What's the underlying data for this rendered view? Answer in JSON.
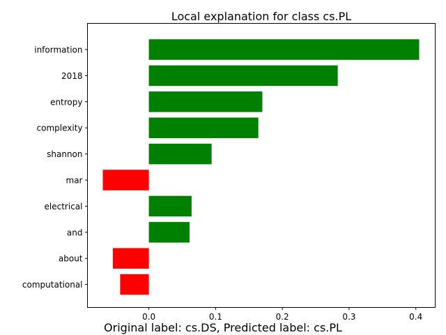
{
  "chart_data": {
    "type": "bar",
    "orientation": "horizontal",
    "title": "Local explanation for class cs.PL",
    "xlabel": "",
    "ylabel": "",
    "caption": "Original label: cs.DS, Predicted label: cs.PL",
    "categories": [
      "information",
      "2018",
      "entropy",
      "complexity",
      "shannon",
      "mar",
      "electrical",
      "and",
      "about",
      "computational"
    ],
    "values": [
      0.405,
      0.283,
      0.17,
      0.164,
      0.094,
      -0.069,
      0.064,
      0.061,
      -0.054,
      -0.043
    ],
    "xlim": [
      -0.092,
      0.429
    ],
    "xticks": [
      0.0,
      0.1,
      0.2,
      0.3,
      0.4
    ],
    "xtick_labels": [
      "0.0",
      "0.1",
      "0.2",
      "0.3",
      "0.4"
    ],
    "colors": {
      "positive": "#008000",
      "negative": "#ff0000",
      "axis": "#000000"
    },
    "grid": false,
    "legend": "none"
  }
}
